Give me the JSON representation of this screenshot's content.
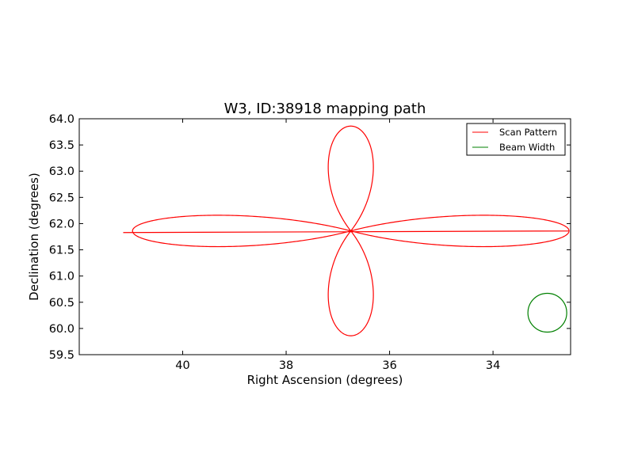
{
  "chart_data": {
    "type": "line",
    "title": "W3, ID:38918 mapping path",
    "xlabel": "Right Ascension (degrees)",
    "ylabel": "Declination (degrees)",
    "xlim": [
      42.0,
      32.5
    ],
    "ylim": [
      59.5,
      64.0
    ],
    "x_inverted": true,
    "xticks": [
      "40",
      "38",
      "36",
      "34"
    ],
    "yticks": [
      "59.5",
      "60.0",
      "60.5",
      "61.0",
      "61.5",
      "62.0",
      "62.5",
      "63.0",
      "63.5",
      "64.0"
    ],
    "grid": false,
    "legend_position": "top-right",
    "series": [
      {
        "name": "Scan Pattern",
        "color": "#ff0000",
        "kind": "four-petal rosette",
        "center": [
          36.75,
          61.86
        ],
        "ra_extremes": [
          40.97,
          32.55
        ],
        "dec_extremes": [
          59.87,
          63.86
        ],
        "tail_start": [
          41.15,
          61.86
        ]
      },
      {
        "name": "Beam Width",
        "color": "#008000",
        "kind": "circle",
        "center": [
          32.95,
          60.3
        ],
        "radius_deg": 0.37
      }
    ]
  }
}
